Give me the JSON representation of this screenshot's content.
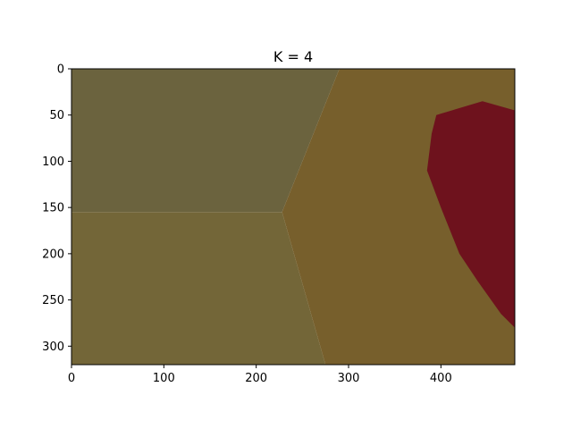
{
  "chart_data": {
    "type": "heatmap",
    "title": "K = 4",
    "xlabel": "",
    "ylabel": "",
    "xlim": [
      0,
      480
    ],
    "ylim": [
      320,
      0
    ],
    "x_ticks": [
      0,
      100,
      200,
      300,
      400
    ],
    "y_ticks": [
      0,
      50,
      100,
      150,
      200,
      250,
      300
    ],
    "colors": {
      "cluster_top_left": "#6b633e",
      "cluster_bottom_left": "#736638",
      "cluster_right": "#775f2c",
      "cluster_detail": "#6e121d"
    },
    "regions": [
      {
        "name": "cluster_top_left",
        "polygon": [
          [
            0,
            0
          ],
          [
            290,
            0
          ],
          [
            228,
            155
          ],
          [
            0,
            155
          ]
        ]
      },
      {
        "name": "cluster_bottom_left",
        "polygon": [
          [
            0,
            155
          ],
          [
            228,
            155
          ],
          [
            275,
            320
          ],
          [
            0,
            320
          ]
        ]
      },
      {
        "name": "cluster_right",
        "polygon": [
          [
            290,
            0
          ],
          [
            480,
            0
          ],
          [
            480,
            320
          ],
          [
            275,
            320
          ],
          [
            228,
            155
          ]
        ]
      },
      {
        "name": "cluster_detail",
        "polygon": [
          [
            395,
            50
          ],
          [
            445,
            35
          ],
          [
            480,
            45
          ],
          [
            480,
            280
          ],
          [
            465,
            265
          ],
          [
            440,
            230
          ],
          [
            420,
            200
          ],
          [
            400,
            150
          ],
          [
            385,
            110
          ],
          [
            390,
            70
          ]
        ]
      }
    ]
  }
}
